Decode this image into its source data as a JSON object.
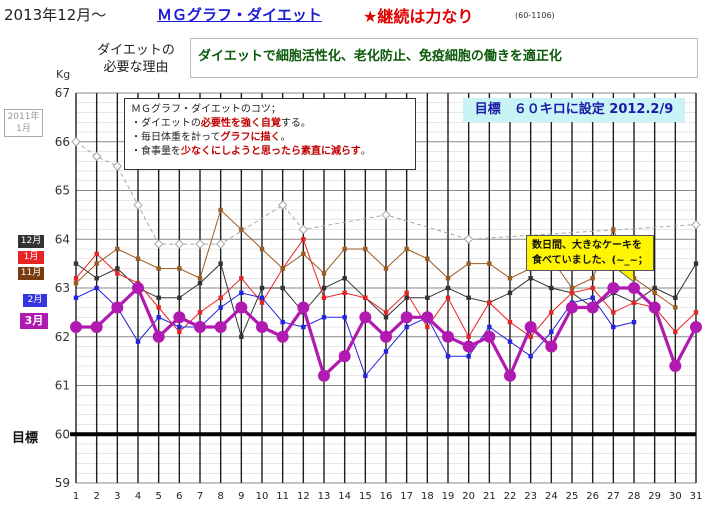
{
  "header": {
    "date": "2013年12月〜",
    "title": "ＭＧグラフ・ダイエット",
    "motto": "★継続は力なり",
    "code": "(60-1106)"
  },
  "reason": {
    "label_line1": "ダイエットの",
    "label_line2": "必要な理由",
    "text": "ダイエットで細胞活性化、老化防止、免疫細胞の働きを適正化"
  },
  "tips": {
    "heading": "ＭＧグラフ・ダイエットのコツ；",
    "line1_a": "・ダイエットの",
    "line1_em": "必要性を強く自覚",
    "line1_b": "する。",
    "line2_a": "・毎日体重を計って",
    "line2_em": "グラフに描く",
    "line2_b": "。",
    "line3_a": "・食事量を",
    "line3_em": "少なくにしようと思ったら素直に減らす",
    "line3_b": "。"
  },
  "target": "目標　６０キロに設定 2012.2/9",
  "cake_note": "数日間、大きなケーキを食べていました、(~_~；",
  "goal_label": "目標",
  "unit": "Kg",
  "legend": {
    "y2011": "2011年\n1月",
    "dec": "12月",
    "jan": "1月",
    "nov": "11月",
    "feb": "2月",
    "mar": "3月"
  },
  "chart_data": {
    "type": "line",
    "xlabel": "",
    "ylabel": "Kg",
    "x": [
      1,
      2,
      3,
      4,
      5,
      6,
      7,
      8,
      9,
      10,
      11,
      12,
      13,
      14,
      15,
      16,
      17,
      18,
      19,
      20,
      21,
      22,
      23,
      24,
      25,
      26,
      27,
      28,
      29,
      30,
      31
    ],
    "ylim": [
      59,
      67
    ],
    "yticks": [
      59,
      60,
      61,
      62,
      63,
      64,
      65,
      66,
      67
    ],
    "goal": 60,
    "colors": {
      "y2011": "#a8a8a8",
      "dec": "#333333",
      "jan": "#e62424",
      "nov": "#9a5a20",
      "feb": "#2424e0",
      "mar": "#b01ab0",
      "goal": "#000000"
    },
    "series": [
      {
        "key": "y2011",
        "name": "2011年 1月",
        "values": [
          66.0,
          65.7,
          65.5,
          64.7,
          63.9,
          63.9,
          63.9,
          63.9,
          null,
          null,
          64.7,
          64.2,
          null,
          null,
          null,
          64.5,
          null,
          null,
          null,
          64.0,
          null,
          null,
          null,
          null,
          null,
          null,
          null,
          null,
          null,
          null,
          64.3
        ]
      },
      {
        "key": "dec",
        "name": "12月",
        "values": [
          63.5,
          63.2,
          63.4,
          63.0,
          62.8,
          62.8,
          63.1,
          63.5,
          62.0,
          63.0,
          63.0,
          62.5,
          63.0,
          63.2,
          62.8,
          62.4,
          62.8,
          62.8,
          63.0,
          62.8,
          62.7,
          62.9,
          63.2,
          63.0,
          62.9,
          62.6,
          62.9,
          62.7,
          63.0,
          62.8,
          63.5
        ]
      },
      {
        "key": "jan",
        "name": "1月",
        "values": [
          63.2,
          63.7,
          63.3,
          63.1,
          62.6,
          62.1,
          62.5,
          62.8,
          63.2,
          62.7,
          63.4,
          64.0,
          62.8,
          62.9,
          62.8,
          62.5,
          62.9,
          62.2,
          62.8,
          62.0,
          62.7,
          62.3,
          62.0,
          62.5,
          62.9,
          63.0,
          62.5,
          62.7,
          62.6,
          62.1,
          62.5
        ]
      },
      {
        "key": "nov",
        "name": "11月",
        "values": [
          63.1,
          63.5,
          63.8,
          63.6,
          63.4,
          63.4,
          63.2,
          64.6,
          64.2,
          63.8,
          63.4,
          63.7,
          63.3,
          63.8,
          63.8,
          63.4,
          63.8,
          63.6,
          63.2,
          63.5,
          63.5,
          63.2,
          63.4,
          63.6,
          63.0,
          63.2,
          64.2,
          63.2,
          62.9,
          62.6,
          null
        ]
      },
      {
        "key": "feb",
        "name": "2月",
        "values": [
          62.8,
          63.0,
          62.6,
          61.9,
          62.4,
          62.2,
          62.2,
          62.6,
          62.9,
          62.8,
          62.3,
          62.2,
          62.4,
          62.4,
          61.2,
          61.7,
          62.2,
          62.4,
          61.6,
          61.6,
          62.2,
          61.9,
          61.6,
          62.1,
          62.7,
          62.8,
          62.2,
          62.3,
          null,
          null,
          null
        ]
      },
      {
        "key": "mar",
        "name": "3月",
        "values": [
          62.2,
          62.2,
          62.6,
          63.0,
          62.0,
          62.4,
          62.2,
          62.2,
          62.6,
          62.2,
          62.0,
          62.6,
          61.2,
          61.6,
          62.4,
          62.0,
          62.4,
          62.4,
          62.0,
          61.8,
          62.0,
          61.2,
          62.2,
          61.8,
          62.6,
          62.6,
          63.0,
          63.0,
          62.6,
          61.4,
          62.2
        ]
      }
    ]
  }
}
